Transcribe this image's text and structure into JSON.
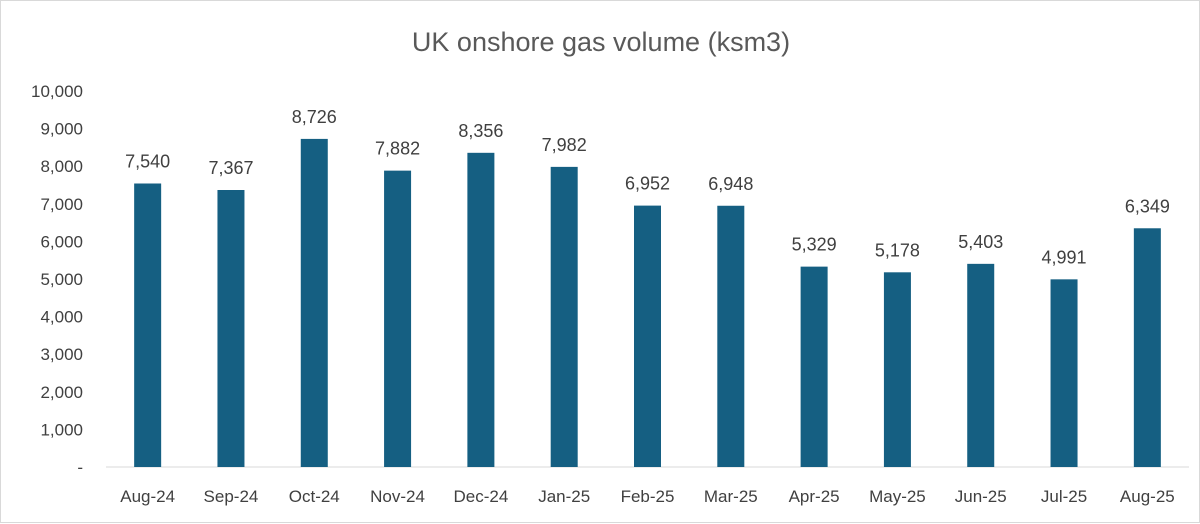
{
  "chart_data": {
    "type": "bar",
    "title": "UK onshore gas volume (ksm3)",
    "xlabel": "",
    "ylabel": "",
    "categories": [
      "Aug-24",
      "Sep-24",
      "Oct-24",
      "Nov-24",
      "Dec-24",
      "Jan-25",
      "Feb-25",
      "Mar-25",
      "Apr-25",
      "May-25",
      "Jun-25",
      "Jul-25",
      "Aug-25"
    ],
    "values": [
      7540,
      7367,
      8726,
      7882,
      8356,
      7982,
      6952,
      6948,
      5329,
      5178,
      5403,
      4991,
      6349
    ],
    "data_labels": [
      "7,540",
      "7,367",
      "8,726",
      "7,882",
      "8,356",
      "7,982",
      "6,952",
      "6,948",
      "5,329",
      "5,178",
      "5,403",
      "4,991",
      "6,349"
    ],
    "ylim": [
      0,
      10000
    ],
    "yticks": [
      0,
      1000,
      2000,
      3000,
      4000,
      5000,
      6000,
      7000,
      8000,
      9000,
      10000
    ],
    "ytick_labels": [
      "-",
      "1,000",
      "2,000",
      "3,000",
      "4,000",
      "5,000",
      "6,000",
      "7,000",
      "8,000",
      "9,000",
      "10,000"
    ],
    "grid": false,
    "legend": "none",
    "bar_color": "#155F82"
  }
}
